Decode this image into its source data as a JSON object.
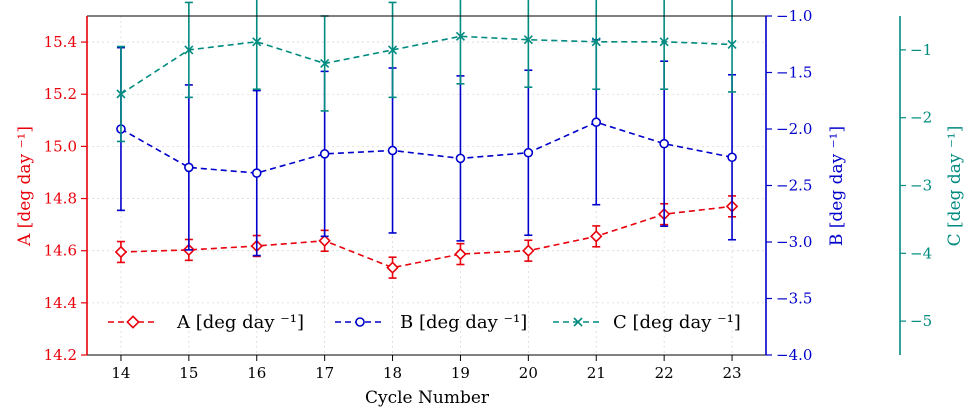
{
  "chart_data": {
    "type": "line",
    "title": "",
    "xlabel": "Cycle Number",
    "x": [
      14,
      15,
      16,
      17,
      18,
      19,
      20,
      21,
      22,
      23
    ],
    "xlim": [
      13.5,
      23.5
    ],
    "grid": true,
    "legend_placement": "bottom",
    "axes": {
      "A": {
        "label": "A [deg day ⁻¹]",
        "lim": [
          14.2,
          15.5
        ],
        "ticks": [
          "14.2",
          "14.4",
          "14.6",
          "14.8",
          "15.0",
          "15.2",
          "15.4"
        ],
        "side": "left",
        "color": "#e8000b"
      },
      "B": {
        "label": "B [deg day ⁻¹]",
        "lim": [
          -4.0,
          -1.0
        ],
        "ticks": [
          "−4.0",
          "−3.5",
          "−3.0",
          "−2.5",
          "−2.0",
          "−1.5",
          "−1.0"
        ],
        "side": "right",
        "color": "#0000cc"
      },
      "C": {
        "label": "C [deg day ⁻¹]",
        "lim": [
          -5.5,
          -0.5
        ],
        "ticks": [
          "−5",
          "−4",
          "−3",
          "−2",
          "−1"
        ],
        "side": "right-outer",
        "color": "#008b80"
      }
    },
    "series": [
      {
        "name": "A [deg day ⁻¹]",
        "axis": "A",
        "color": "#e8000b",
        "marker": "diamond",
        "values": [
          14.595,
          14.603,
          14.618,
          14.638,
          14.535,
          14.587,
          14.6,
          14.655,
          14.74,
          14.77
        ],
        "errors": [
          0.04,
          0.04,
          0.04,
          0.04,
          0.04,
          0.04,
          0.04,
          0.04,
          0.04,
          0.04
        ]
      },
      {
        "name": "B [deg day ⁻¹]",
        "axis": "B",
        "color": "#0000cc",
        "marker": "circle",
        "values": [
          -2.0,
          -2.34,
          -2.39,
          -2.22,
          -2.19,
          -2.26,
          -2.21,
          -1.94,
          -2.13,
          -2.25
        ],
        "errors": [
          0.72,
          0.73,
          0.73,
          0.73,
          0.73,
          0.73,
          0.73,
          0.73,
          0.73,
          0.73
        ]
      },
      {
        "name": "C [deg day ⁻¹]",
        "axis": "C",
        "color": "#008b80",
        "marker": "x",
        "values": [
          -1.65,
          -1.0,
          -0.88,
          -1.2,
          -1.0,
          -0.8,
          -0.85,
          -0.88,
          -0.88,
          -0.92
        ],
        "errors": [
          0.7,
          0.7,
          0.7,
          0.7,
          0.7,
          0.7,
          0.7,
          0.7,
          0.7,
          0.7
        ]
      }
    ]
  }
}
